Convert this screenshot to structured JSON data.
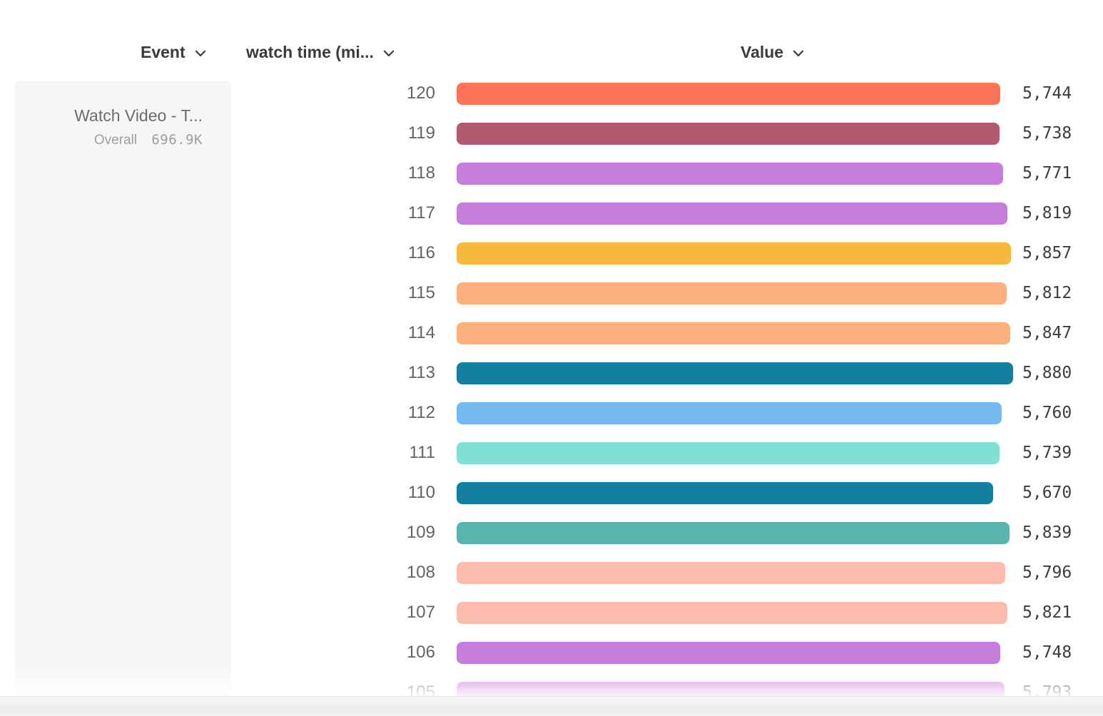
{
  "headers": {
    "event": "Event",
    "metric": "watch time (mi...",
    "value": "Value"
  },
  "event_panel": {
    "title": "Watch Video - T...",
    "overall_label": "Overall",
    "overall_value": "696.9K"
  },
  "chart_data": {
    "type": "bar",
    "orientation": "horizontal",
    "title": "",
    "xlabel": "Value",
    "ylabel": "watch time (mi...",
    "grid": false,
    "legend": "none",
    "xlim": [
      0,
      5880
    ],
    "categories": [
      "120",
      "119",
      "118",
      "117",
      "116",
      "115",
      "114",
      "113",
      "112",
      "111",
      "110",
      "109",
      "108",
      "107",
      "106",
      "105"
    ],
    "values": [
      5744,
      5738,
      5771,
      5819,
      5857,
      5812,
      5847,
      5880,
      5760,
      5739,
      5670,
      5839,
      5796,
      5821,
      5748,
      5793
    ],
    "value_labels": [
      "5,744",
      "5,738",
      "5,771",
      "5,819",
      "5,857",
      "5,812",
      "5,847",
      "5,880",
      "5,760",
      "5,739",
      "5,670",
      "5,839",
      "5,796",
      "5,821",
      "5,748",
      "5,793"
    ],
    "colors": [
      "#FD7458",
      "#B25A6E",
      "#C77DDC",
      "#C77DDC",
      "#F6B93E",
      "#FBB07E",
      "#FBB07E",
      "#14809F",
      "#72BAF1",
      "#81DFD3",
      "#14809F",
      "#58B4AD",
      "#FCBCAD",
      "#FCBCAD",
      "#C77DDC",
      "#C77DDC"
    ]
  },
  "icons": {
    "chevron_down": "chevron-down"
  }
}
